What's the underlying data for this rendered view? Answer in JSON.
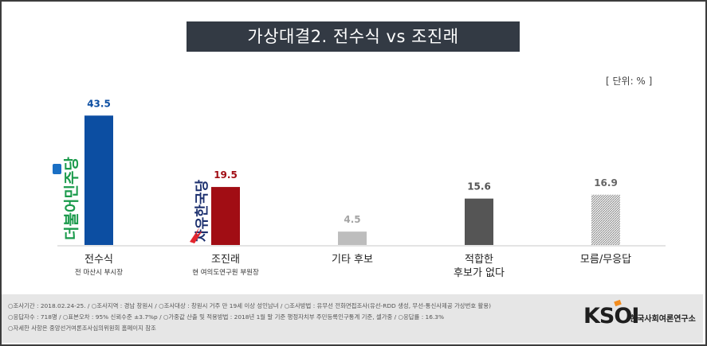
{
  "title": "가상대결2. 전수식 vs 조진래",
  "unit": "[ 단위: % ]",
  "chart_data": {
    "type": "bar",
    "title": "가상대결2. 전수식 vs 조진래",
    "ylim": [
      0,
      50
    ],
    "categories": [
      "전수식",
      "조진래",
      "기타 후보",
      "적합한 후보가 없다",
      "모름/무응답"
    ],
    "category_lines": [
      [
        "전수식"
      ],
      [
        "조진래"
      ],
      [
        "기타 후보"
      ],
      [
        "적합한",
        "후보가 없다"
      ],
      [
        "모름/무응답"
      ]
    ],
    "subtitles": [
      "전 마산시 부시장",
      "현 여의도연구원 부원장",
      "",
      "",
      ""
    ],
    "values": [
      43.5,
      19.5,
      4.5,
      15.6,
      16.9
    ],
    "value_labels": [
      "43.5",
      "19.5",
      "4.5",
      "15.6",
      "16.9"
    ],
    "colors": [
      "#0c4ea2",
      "#a10d14",
      "#bdbdbd",
      "#555555",
      "hatch"
    ],
    "label_colors": [
      "#0c4ea2",
      "#a10d14",
      "#a5a5a5",
      "#555555",
      "#666666"
    ],
    "party_logos": [
      "더불어민주당",
      "자유한국당"
    ]
  },
  "footer": {
    "line1": "○조사기간 : 2018.02.24-25. / ○조사지역 : 경남 창원시 / ○조사대상 : 창원시 거주 만 19세 이상 성인남녀 / ○조사방법 : 유무선 전화면접조사(유선-RDD 생성, 무선-통신사제공 가상번호 활용)",
    "line2": "○응답자수 : 718명 / ○표본오차 : 95% 신뢰수준 ±3.7%p / ○가중값 산출 및 적용방법 : 2018년 1월 말 기준 행정자치부 주민등록인구통계 기준, 셀가중 / ○응답률 : 16.3%",
    "line3": "○자세한 사항은 중앙선거여론조사심의위원회 홈페이지 참조"
  },
  "logo": {
    "text": "KSOI",
    "org": "한국사회여론연구소"
  }
}
